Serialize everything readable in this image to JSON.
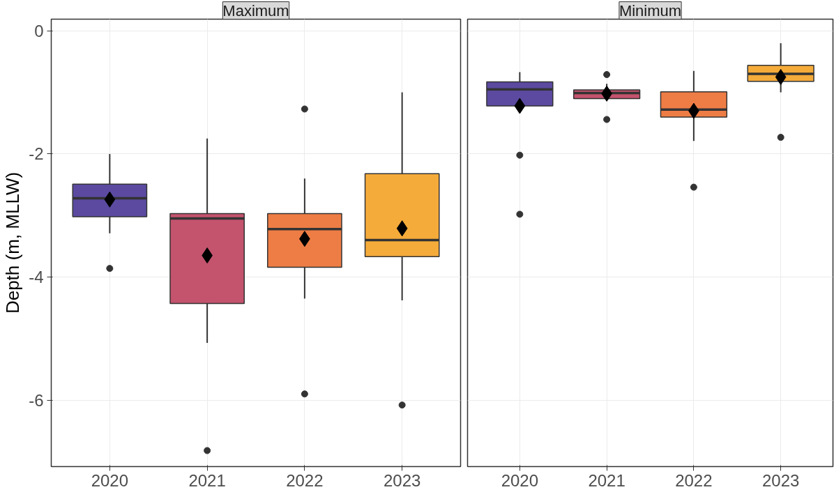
{
  "chart_data": [
    {
      "type": "box",
      "title": "Maximum",
      "ylabel": "Depth (m, MLLW)",
      "categories": [
        "2020",
        "2021",
        "2022",
        "2023"
      ],
      "colors": [
        "#5b4aa0",
        "#c4536e",
        "#ee7d45",
        "#f5ab3a"
      ],
      "ylim": [
        -7.08,
        0.19
      ],
      "yticks": [
        {
          "value": 0,
          "label": "0"
        },
        {
          "value": -2,
          "label": "-2"
        },
        {
          "value": -4,
          "label": "-4"
        },
        {
          "value": -6,
          "label": "-6"
        }
      ],
      "grid": true,
      "marker": "diamond",
      "boxes": [
        {
          "low": -3.29,
          "q1": -3.02,
          "median": -2.72,
          "q3": -2.49,
          "high": -2.0,
          "mean": -2.74,
          "outliers": [
            -3.86
          ]
        },
        {
          "low": -5.07,
          "q1": -4.43,
          "median": -3.05,
          "q3": -2.97,
          "high": -1.75,
          "mean": -3.65,
          "outliers": [
            -6.82
          ]
        },
        {
          "low": -4.35,
          "q1": -3.84,
          "median": -3.22,
          "q3": -2.97,
          "high": -2.4,
          "mean": -3.38,
          "outliers": [
            -1.27,
            -5.9
          ]
        },
        {
          "low": -4.38,
          "q1": -3.67,
          "median": -3.4,
          "q3": -2.32,
          "high": -1.0,
          "mean": -3.21,
          "outliers": [
            -6.08
          ]
        }
      ]
    },
    {
      "type": "box",
      "title": "Minimum",
      "categories": [
        "2020",
        "2021",
        "2022",
        "2023"
      ],
      "colors": [
        "#5b4aa0",
        "#c4536e",
        "#ee7d45",
        "#f5ab3a"
      ],
      "ylim": [
        -7.08,
        0.19
      ],
      "yticks": [
        {
          "value": 0,
          "label": null
        },
        {
          "value": -2,
          "label": null
        },
        {
          "value": -4,
          "label": null
        },
        {
          "value": -6,
          "label": null
        }
      ],
      "grid": true,
      "marker": "diamond",
      "tick_labels": "x",
      "boxes": [
        {
          "low": -1.22,
          "q1": -1.22,
          "median": -0.95,
          "q3": -0.83,
          "high": -0.67,
          "mean": -1.22,
          "outliers": [
            -2.02,
            -2.98
          ]
        },
        {
          "low": -1.1,
          "q1": -1.1,
          "median": -1.01,
          "q3": -0.96,
          "high": -0.86,
          "mean": -1.02,
          "outliers": [
            -0.71,
            -1.44
          ]
        },
        {
          "low": -1.79,
          "q1": -1.4,
          "median": -1.28,
          "q3": -0.99,
          "high": -0.65,
          "mean": -1.3,
          "outliers": [
            -2.54
          ]
        },
        {
          "low": -1.0,
          "q1": -0.82,
          "median": -0.7,
          "q3": -0.56,
          "high": -0.2,
          "mean": -0.75,
          "outliers": [
            -1.73
          ]
        }
      ]
    }
  ]
}
